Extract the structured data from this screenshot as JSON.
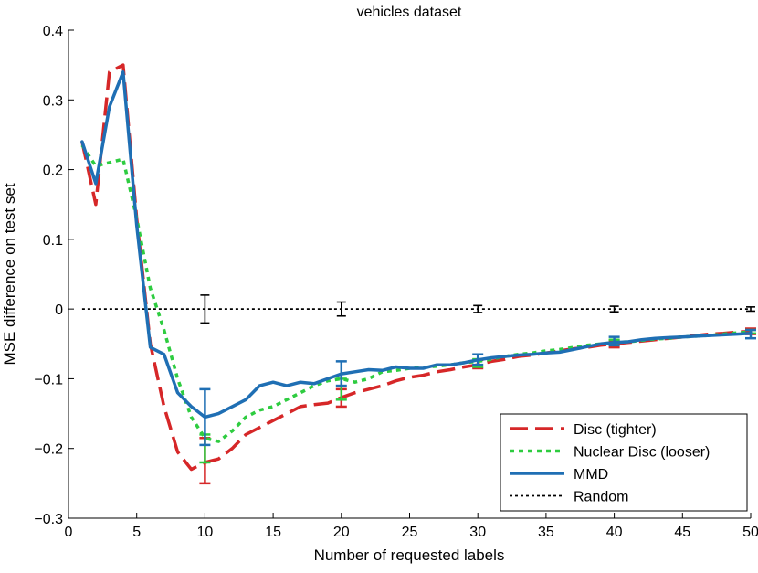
{
  "chart_data": {
    "type": "line",
    "title": "vehicles dataset",
    "xlabel": "Number of requested labels",
    "ylabel": "MSE difference on test set",
    "xlim": [
      0,
      50
    ],
    "ylim": [
      -0.3,
      0.4
    ],
    "xticks": [
      0,
      5,
      10,
      15,
      20,
      25,
      30,
      35,
      40,
      45,
      50
    ],
    "yticks": [
      -0.3,
      -0.2,
      -0.1,
      0,
      0.1,
      0.2,
      0.3,
      0.4
    ],
    "xtick_labels": [
      "0",
      "5",
      "10",
      "15",
      "20",
      "25",
      "30",
      "35",
      "40",
      "45",
      "50"
    ],
    "ytick_labels": [
      "−0.3",
      "−0.2",
      "−0.1",
      "0",
      "0.1",
      "0.2",
      "0.3",
      "0.4"
    ],
    "grid": false,
    "legend_position": "bottom-right",
    "series": [
      {
        "name": "Disc (tighter)",
        "color": "#d62728",
        "style": "dashed",
        "x": [
          1,
          2,
          3,
          4,
          5,
          6,
          7,
          8,
          9,
          10,
          11,
          12,
          13,
          14,
          15,
          16,
          17,
          18,
          19,
          20,
          21,
          22,
          23,
          24,
          25,
          26,
          27,
          28,
          29,
          30,
          31,
          32,
          33,
          34,
          35,
          36,
          37,
          38,
          39,
          40,
          41,
          42,
          43,
          44,
          45,
          46,
          47,
          48,
          49,
          50
        ],
        "y": [
          0.24,
          0.15,
          0.34,
          0.35,
          0.13,
          -0.05,
          -0.14,
          -0.205,
          -0.23,
          -0.22,
          -0.215,
          -0.2,
          -0.18,
          -0.17,
          -0.16,
          -0.15,
          -0.14,
          -0.137,
          -0.135,
          -0.127,
          -0.12,
          -0.115,
          -0.11,
          -0.103,
          -0.098,
          -0.095,
          -0.09,
          -0.087,
          -0.083,
          -0.08,
          -0.075,
          -0.072,
          -0.068,
          -0.066,
          -0.063,
          -0.06,
          -0.057,
          -0.055,
          -0.052,
          -0.05,
          -0.048,
          -0.046,
          -0.044,
          -0.042,
          -0.04,
          -0.038,
          -0.036,
          -0.035,
          -0.033,
          -0.032
        ],
        "error_bars": [
          {
            "x": 10,
            "low": -0.25,
            "high": -0.185
          },
          {
            "x": 20,
            "low": -0.14,
            "high": -0.115
          },
          {
            "x": 30,
            "low": -0.085,
            "high": -0.073
          },
          {
            "x": 40,
            "low": -0.055,
            "high": -0.045
          },
          {
            "x": 50,
            "low": -0.036,
            "high": -0.028
          }
        ]
      },
      {
        "name": "Nuclear Disc (looser)",
        "color": "#2ecc40",
        "style": "dotted",
        "x": [
          1,
          2,
          3,
          4,
          5,
          6,
          7,
          8,
          9,
          10,
          11,
          12,
          13,
          14,
          15,
          16,
          17,
          18,
          19,
          20,
          21,
          22,
          23,
          24,
          25,
          26,
          27,
          28,
          29,
          30,
          31,
          32,
          33,
          34,
          35,
          36,
          37,
          38,
          39,
          40,
          41,
          42,
          43,
          44,
          45,
          46,
          47,
          48,
          49,
          50
        ],
        "y": [
          0.235,
          0.205,
          0.21,
          0.215,
          0.13,
          0.03,
          -0.03,
          -0.1,
          -0.155,
          -0.185,
          -0.19,
          -0.175,
          -0.155,
          -0.145,
          -0.14,
          -0.13,
          -0.12,
          -0.11,
          -0.103,
          -0.1,
          -0.105,
          -0.1,
          -0.09,
          -0.088,
          -0.085,
          -0.084,
          -0.082,
          -0.08,
          -0.077,
          -0.075,
          -0.072,
          -0.068,
          -0.065,
          -0.063,
          -0.06,
          -0.058,
          -0.055,
          -0.052,
          -0.05,
          -0.048,
          -0.047,
          -0.045,
          -0.043,
          -0.042,
          -0.04,
          -0.039,
          -0.038,
          -0.036,
          -0.034,
          -0.033
        ],
        "error_bars": [
          {
            "x": 10,
            "low": -0.22,
            "high": -0.18
          },
          {
            "x": 20,
            "low": -0.13,
            "high": -0.1
          },
          {
            "x": 30,
            "low": -0.083,
            "high": -0.072
          },
          {
            "x": 40,
            "low": -0.052,
            "high": -0.044
          },
          {
            "x": 50,
            "low": -0.035,
            "high": -0.03
          }
        ]
      },
      {
        "name": "MMD",
        "color": "#1f6fb4",
        "style": "solid",
        "x": [
          1,
          2,
          3,
          4,
          5,
          6,
          7,
          8,
          9,
          10,
          11,
          12,
          13,
          14,
          15,
          16,
          17,
          18,
          19,
          20,
          21,
          22,
          23,
          24,
          25,
          26,
          27,
          28,
          29,
          30,
          31,
          32,
          33,
          34,
          35,
          36,
          37,
          38,
          39,
          40,
          41,
          42,
          43,
          44,
          45,
          46,
          47,
          48,
          49,
          50
        ],
        "y": [
          0.24,
          0.18,
          0.29,
          0.34,
          0.12,
          -0.055,
          -0.065,
          -0.12,
          -0.14,
          -0.155,
          -0.15,
          -0.14,
          -0.13,
          -0.11,
          -0.105,
          -0.11,
          -0.105,
          -0.107,
          -0.1,
          -0.093,
          -0.09,
          -0.087,
          -0.088,
          -0.083,
          -0.085,
          -0.085,
          -0.08,
          -0.08,
          -0.077,
          -0.073,
          -0.07,
          -0.068,
          -0.066,
          -0.065,
          -0.063,
          -0.062,
          -0.058,
          -0.054,
          -0.05,
          -0.048,
          -0.047,
          -0.044,
          -0.042,
          -0.041,
          -0.04,
          -0.039,
          -0.038,
          -0.037,
          -0.036,
          -0.035
        ],
        "error_bars": [
          {
            "x": 10,
            "low": -0.195,
            "high": -0.115
          },
          {
            "x": 20,
            "low": -0.11,
            "high": -0.075
          },
          {
            "x": 30,
            "low": -0.08,
            "high": -0.065
          },
          {
            "x": 40,
            "low": -0.052,
            "high": -0.04
          },
          {
            "x": 50,
            "low": -0.042,
            "high": -0.03
          }
        ]
      },
      {
        "name": "Random",
        "color": "#000000",
        "style": "dotted-fine",
        "x": [
          1,
          50
        ],
        "y": [
          0,
          0
        ],
        "error_bars": [
          {
            "x": 10,
            "low": -0.02,
            "high": 0.02
          },
          {
            "x": 20,
            "low": -0.01,
            "high": 0.01
          },
          {
            "x": 30,
            "low": -0.005,
            "high": 0.005
          },
          {
            "x": 40,
            "low": -0.004,
            "high": 0.004
          },
          {
            "x": 50,
            "low": -0.003,
            "high": 0.003
          }
        ]
      }
    ]
  }
}
